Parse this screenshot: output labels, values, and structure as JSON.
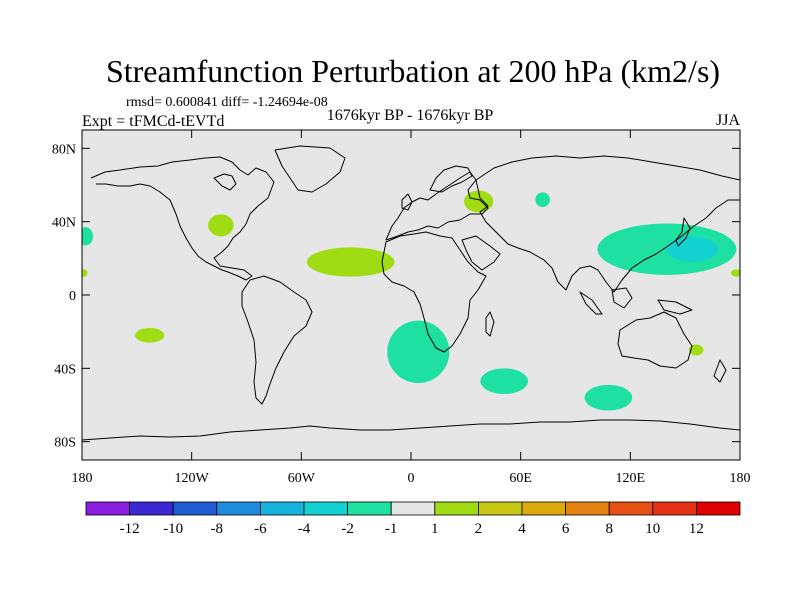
{
  "chart_data": {
    "type": "heatmap",
    "title": "Streamfunction Perturbation at 200 hPa (km2/s)",
    "stats_line": "rmsd= 0.600841 diff= -1.24694e-08",
    "experiment": "Expt = tFMCd-tEVTd",
    "period": "1676kyr BP - 1676kyr BP",
    "season": "JJA",
    "x_ticks": [
      "180",
      "120W",
      "60W",
      "0",
      "60E",
      "120E",
      "180"
    ],
    "y_ticks": [
      "80N",
      "40N",
      "0",
      "40S",
      "80S"
    ],
    "lon_range": [
      -180,
      180
    ],
    "lat_range": [
      -90,
      90
    ],
    "colorbar": {
      "labels": [
        "-12",
        "-10",
        "-8",
        "-6",
        "-4",
        "-2",
        "-1",
        "1",
        "2",
        "4",
        "6",
        "8",
        "10",
        "12"
      ],
      "colors": [
        "#8a1ee0",
        "#3c28d2",
        "#1e5ad2",
        "#1e8cdc",
        "#14b4dc",
        "#14d2d2",
        "#1ee0a0",
        "#e6e6e6",
        "#a0dc14",
        "#c8c814",
        "#dcaa0a",
        "#e68214",
        "#e65014",
        "#e63214",
        "#e00000"
      ]
    },
    "anomalies": [
      {
        "lon": 37,
        "lat": 51,
        "rlon": 8,
        "rlat": 6,
        "value": 1.5
      },
      {
        "lon": -104,
        "lat": 38,
        "rlon": 7,
        "rlat": 6,
        "value": 1.5
      },
      {
        "lon": -143,
        "lat": -22,
        "rlon": 8,
        "rlat": 4,
        "value": 1.5
      },
      {
        "lon": -33,
        "lat": 18,
        "rlon": 24,
        "rlat": 8,
        "value": 1.5
      },
      {
        "lon": 156,
        "lat": -30,
        "rlon": 4,
        "rlat": 3,
        "value": 1.5
      },
      {
        "lon": 178,
        "lat": 12,
        "rlon": 3,
        "rlat": 2,
        "value": 1.5
      },
      {
        "lon": -179,
        "lat": 12,
        "rlon": 2,
        "rlat": 2,
        "value": 1.5
      },
      {
        "lon": 140,
        "lat": 25,
        "rlon": 38,
        "rlat": 14,
        "value": -1.5
      },
      {
        "lon": 154,
        "lat": 25,
        "rlon": 14,
        "rlat": 7,
        "value": -2.5
      },
      {
        "lon": 4,
        "lat": -31,
        "rlon": 17,
        "rlat": 17,
        "value": -1.5
      },
      {
        "lon": 51,
        "lat": -47,
        "rlon": 13,
        "rlat": 7,
        "value": -1.5
      },
      {
        "lon": 108,
        "lat": -56,
        "rlon": 13,
        "rlat": 7,
        "value": -1.5
      },
      {
        "lon": 72,
        "lat": 52,
        "rlon": 4,
        "rlat": 4,
        "value": -1.5
      },
      {
        "lon": 113,
        "lat": 28,
        "rlon": 5,
        "rlat": 3,
        "value": -1.5
      },
      {
        "lon": -178,
        "lat": 32,
        "rlon": 4,
        "rlat": 5,
        "value": -1.5
      }
    ]
  }
}
